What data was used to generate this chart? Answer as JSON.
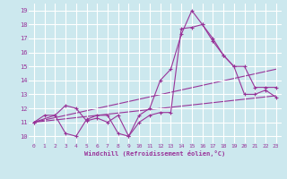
{
  "background_color": "#cce8ee",
  "grid_color": "#aadddd",
  "line_color": "#993399",
  "xlabel": "Windchill (Refroidissement éolien,°C)",
  "xlim": [
    -0.5,
    23.5
  ],
  "ylim": [
    9.5,
    19.5
  ],
  "xticks": [
    0,
    1,
    2,
    3,
    4,
    5,
    6,
    7,
    8,
    9,
    10,
    11,
    12,
    13,
    14,
    15,
    16,
    17,
    18,
    19,
    20,
    21,
    22,
    23
  ],
  "yticks": [
    10,
    11,
    12,
    13,
    14,
    15,
    16,
    17,
    18,
    19
  ],
  "line1_x": [
    0,
    1,
    2,
    3,
    4,
    5,
    6,
    7,
    8,
    9,
    10,
    11,
    12,
    13,
    14,
    15,
    16,
    17,
    18,
    19,
    20,
    21,
    22,
    23
  ],
  "line1_y": [
    11.0,
    11.5,
    11.5,
    12.2,
    12.0,
    11.1,
    11.3,
    11.0,
    11.5,
    10.0,
    11.5,
    12.0,
    14.0,
    14.8,
    17.3,
    19.0,
    18.0,
    17.0,
    15.8,
    15.0,
    15.0,
    13.5,
    13.5,
    13.5
  ],
  "line2_x": [
    0,
    2,
    3,
    4,
    5,
    6,
    7,
    8,
    9,
    10,
    11,
    12,
    13,
    14,
    15,
    16,
    17,
    18,
    19,
    20,
    21,
    22,
    23
  ],
  "line2_y": [
    11.0,
    11.5,
    10.2,
    10.0,
    11.2,
    11.5,
    11.5,
    10.2,
    10.0,
    11.0,
    11.5,
    11.7,
    11.7,
    17.7,
    17.8,
    18.0,
    16.8,
    15.8,
    15.0,
    13.0,
    13.0,
    13.3,
    12.8
  ],
  "line3_x": [
    0,
    23
  ],
  "line3_y": [
    11.0,
    14.8
  ],
  "line4_x": [
    0,
    23
  ],
  "line4_y": [
    11.0,
    12.9
  ]
}
